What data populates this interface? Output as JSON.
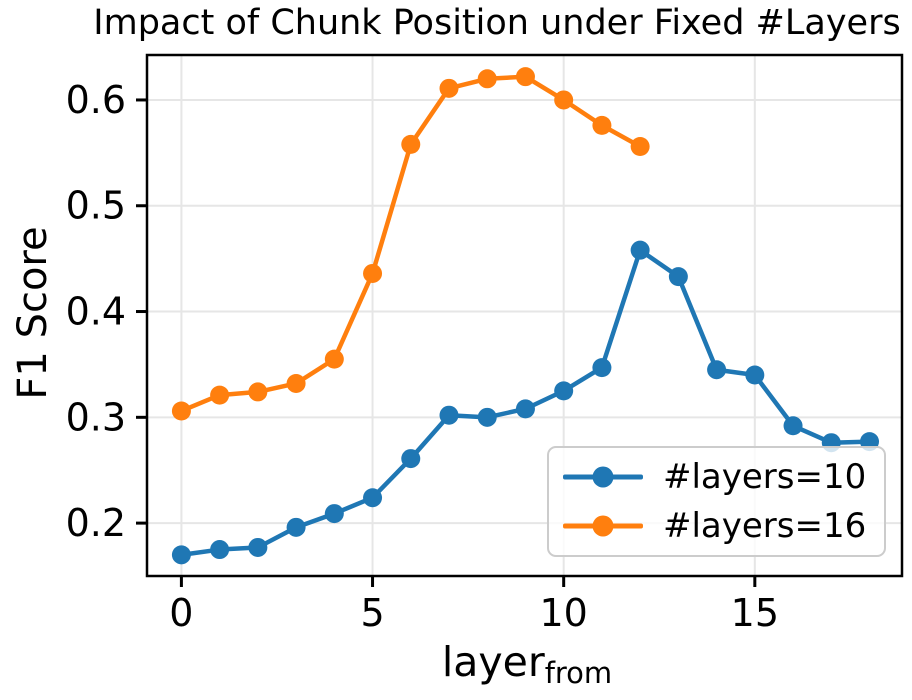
{
  "chart_data": {
    "type": "line",
    "title": "Impact of Chunk Position under Fixed #Layers",
    "xlabel": "layer_from",
    "xlabel_main": "layer",
    "xlabel_sub": "from",
    "ylabel": "F1 Score",
    "series": [
      {
        "name": "#layers=10",
        "color": "#1f77b4",
        "x": [
          0,
          1,
          2,
          3,
          4,
          5,
          6,
          7,
          8,
          9,
          10,
          11,
          12,
          13,
          14,
          15,
          16,
          17,
          18
        ],
        "values": [
          0.17,
          0.175,
          0.177,
          0.196,
          0.209,
          0.224,
          0.261,
          0.302,
          0.3,
          0.308,
          0.325,
          0.347,
          0.458,
          0.433,
          0.345,
          0.34,
          0.292,
          0.276,
          0.277
        ]
      },
      {
        "name": "#layers=16",
        "color": "#ff7f0e",
        "x": [
          0,
          1,
          2,
          3,
          4,
          5,
          6,
          7,
          8,
          9,
          10,
          11,
          12
        ],
        "values": [
          0.306,
          0.321,
          0.324,
          0.332,
          0.355,
          0.436,
          0.558,
          0.611,
          0.62,
          0.622,
          0.6,
          0.576,
          0.556
        ]
      }
    ],
    "xticks": [
      0,
      5,
      10,
      15
    ],
    "yticks": [
      0.2,
      0.3,
      0.4,
      0.5,
      0.6
    ],
    "xlim": [
      -0.9,
      18.85
    ],
    "ylim": [
      0.15,
      0.6425
    ],
    "grid": true,
    "legend_position": "lower right",
    "colors": {
      "grid": "#e6e6e6",
      "spine": "#000000",
      "background": "#ffffff",
      "legend_border": "#cccccc"
    }
  }
}
